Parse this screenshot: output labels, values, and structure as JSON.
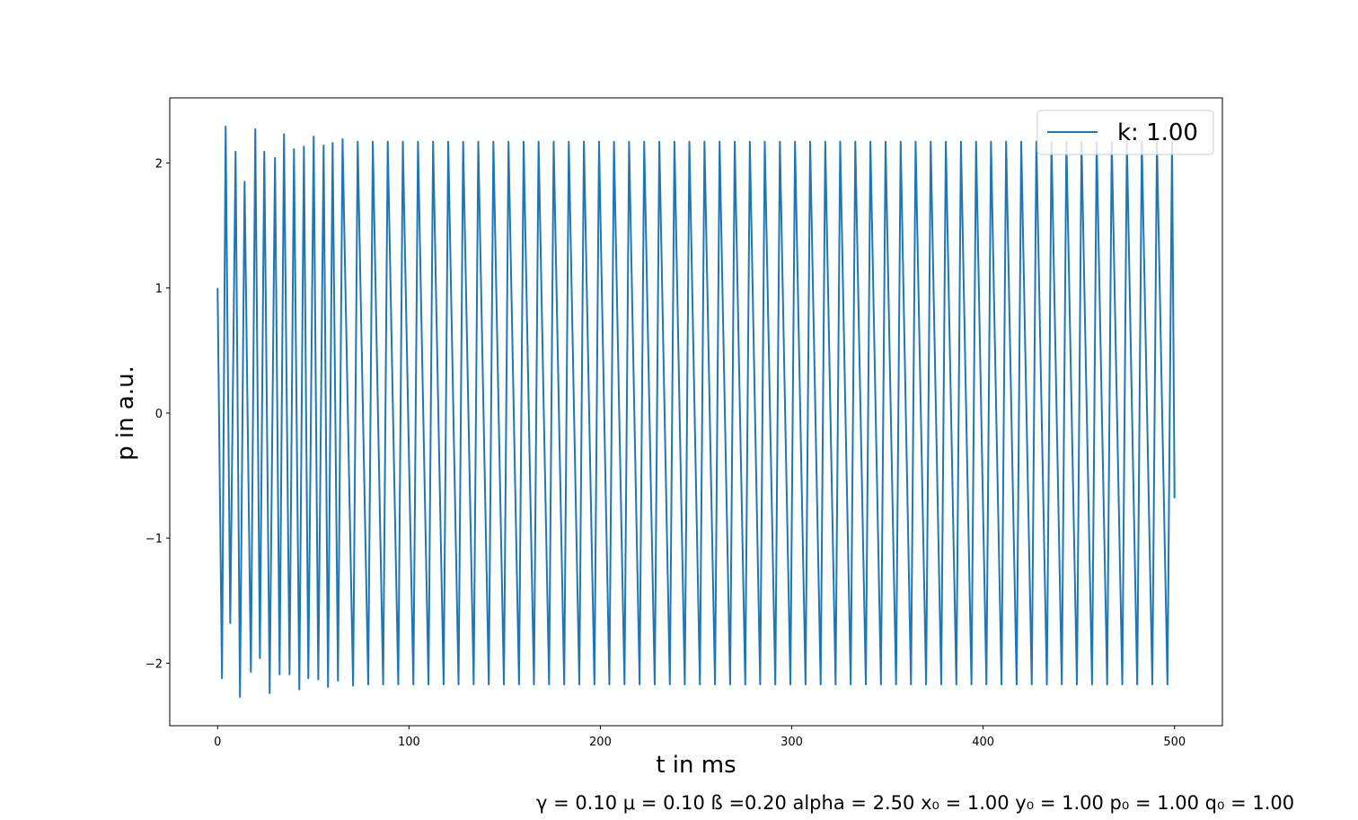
{
  "chart_data": {
    "type": "line",
    "xlabel": "t in ms",
    "ylabel": "p in a.u.",
    "annotation": "γ = 0.10 μ = 0.10 ß =0.20 alpha = 2.50 x₀ = 1.00 y₀ = 1.00 p₀ = 1.00 q₀ = 1.00",
    "xlim": [
      -25,
      525
    ],
    "ylim": [
      -2.5,
      2.52
    ],
    "xticks": [
      0,
      100,
      200,
      300,
      400,
      500
    ],
    "yticks": [
      {
        "value": -2,
        "label": "−2"
      },
      {
        "value": -1,
        "label": "−1"
      },
      0,
      1,
      2
    ],
    "grid": false,
    "legend": "upper right",
    "x": [
      0,
      2.3,
      4.2,
      6.6,
      9.4,
      11.7,
      14.1,
      17.4,
      19.7,
      22.1,
      24.4,
      27.2,
      30,
      32.4,
      34.7,
      37.6,
      39.9,
      42.7,
      45.1,
      47.4,
      50.2,
      52.6,
      55.4,
      57.7,
      60.1,
      62.9,
      65.3,
      70.8,
      73.2,
      78.7,
      81.1,
      86.5,
      88.9,
      94.4,
      96.8,
      102.3,
      104.7,
      110.2,
      112.6,
      118.1,
      120.5,
      125.9,
      128.3,
      133.8,
      136.2,
      141.7,
      144.1,
      149.6,
      152.0,
      157.5,
      159.9,
      165.3,
      167.7,
      173.2,
      175.6,
      181.1,
      183.5,
      189.0,
      191.4,
      196.9,
      199.3,
      204.7,
      207.1,
      212.6,
      215.0,
      220.5,
      222.9,
      228.4,
      230.8,
      236.3,
      238.7,
      244.1,
      246.5,
      252.0,
      254.4,
      259.9,
      262.3,
      267.8,
      270.2,
      275.7,
      278.1,
      283.5,
      285.9,
      291.4,
      293.8,
      299.3,
      301.7,
      307.2,
      309.6,
      315.1,
      317.5,
      322.9,
      325.3,
      330.8,
      333.2,
      338.7,
      341.1,
      346.6,
      349.0,
      354.5,
      356.9,
      362.3,
      364.7,
      370.2,
      372.6,
      378.1,
      380.5,
      386.0,
      388.4,
      393.9,
      396.3,
      401.7,
      404.1,
      409.6,
      412.0,
      417.5,
      419.9,
      425.4,
      427.8,
      433.3,
      435.7,
      441.1,
      443.5,
      449.0,
      451.4,
      456.9,
      459.3,
      464.8,
      467.2,
      472.7,
      475.1,
      480.5,
      482.9,
      488.4,
      490.8,
      496.3,
      498.7,
      500
    ],
    "series": [
      {
        "name": "k: 1.00",
        "color": "#1f77b4",
        "values": [
          1,
          -2.12,
          2.29,
          -1.68,
          2.09,
          -2.27,
          1.85,
          -2.07,
          2.27,
          -1.96,
          2.09,
          -2.24,
          2.04,
          -2.09,
          2.23,
          -2.09,
          2.11,
          -2.21,
          2.13,
          -2.12,
          2.21,
          -2.13,
          2.14,
          -2.19,
          2.16,
          -2.14,
          2.19,
          -2.18,
          2.17,
          -2.17,
          2.17,
          -2.17,
          2.17,
          -2.17,
          2.17,
          -2.17,
          2.17,
          -2.17,
          2.17,
          -2.17,
          2.17,
          -2.17,
          2.17,
          -2.17,
          2.17,
          -2.17,
          2.17,
          -2.17,
          2.17,
          -2.17,
          2.17,
          -2.17,
          2.17,
          -2.17,
          2.17,
          -2.17,
          2.17,
          -2.17,
          2.17,
          -2.17,
          2.17,
          -2.17,
          2.17,
          -2.17,
          2.17,
          -2.17,
          2.17,
          -2.17,
          2.17,
          -2.17,
          2.17,
          -2.17,
          2.17,
          -2.17,
          2.17,
          -2.17,
          2.17,
          -2.17,
          2.17,
          -2.17,
          2.17,
          -2.17,
          2.17,
          -2.17,
          2.17,
          -2.17,
          2.17,
          -2.17,
          2.17,
          -2.17,
          2.17,
          -2.17,
          2.17,
          -2.17,
          2.17,
          -2.17,
          2.17,
          -2.17,
          2.17,
          -2.17,
          2.17,
          -2.17,
          2.17,
          -2.17,
          2.17,
          -2.17,
          2.17,
          -2.17,
          2.17,
          -2.17,
          2.17,
          -2.17,
          2.17,
          -2.17,
          2.17,
          -2.17,
          2.17,
          -2.17,
          2.17,
          -2.17,
          2.17,
          -2.17,
          2.17,
          -2.17,
          2.17,
          -2.17,
          2.17,
          -2.17,
          2.17,
          -2.17,
          2.17,
          -2.17,
          2.17,
          -2.17,
          2.17,
          -2.17,
          2.17,
          -0.68
        ]
      }
    ]
  }
}
